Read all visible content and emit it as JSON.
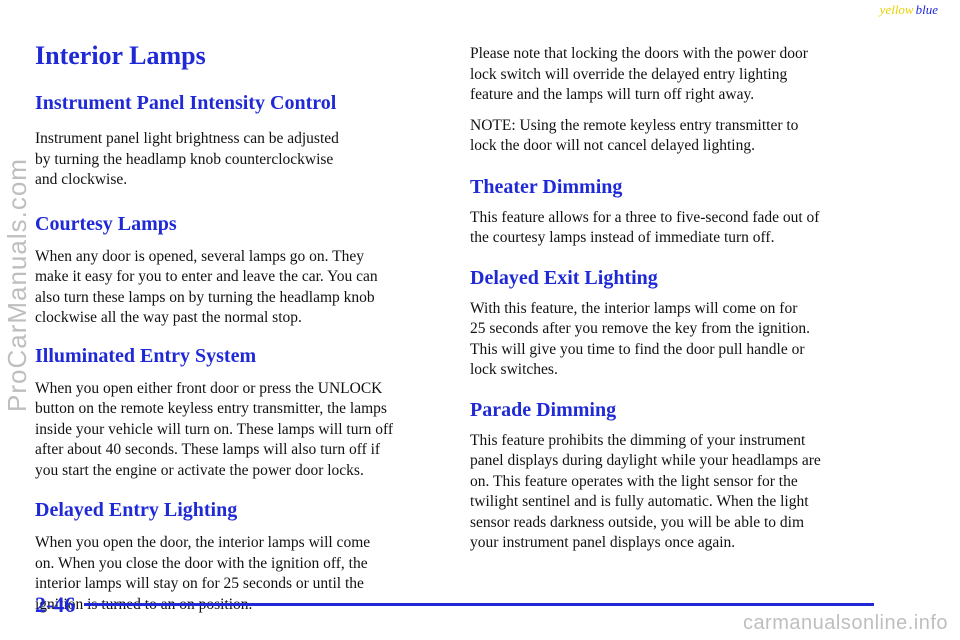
{
  "corner_tag": {
    "yellow": "yellow",
    "blue": "blue"
  },
  "left": {
    "title": "Interior Lamps",
    "sections": [
      {
        "heading": "Instrument Panel Intensity Control",
        "text": "Instrument panel light brightness can be adjusted\nby turning the headlamp knob counterclockwise\nand clockwise."
      },
      {
        "heading": "Courtesy Lamps",
        "text": "When any door is opened, several lamps go on. They\nmake it easy for you to enter and leave the car. You can\nalso turn these lamps on by turning the headlamp knob\nclockwise all the way past the normal stop."
      },
      {
        "heading": "Illuminated Entry System",
        "text": "When you open either front door or press the UNLOCK\nbutton on the remote keyless entry transmitter, the lamps\ninside your vehicle will turn on. These lamps will turn off\nafter about 40 seconds. These lamps will also turn off if\nyou start the engine or activate the power door locks."
      },
      {
        "heading": "Delayed Entry Lighting",
        "text": "When you open the door, the interior lamps will come\non. When you close the door with the ignition off, the\ninterior lamps will stay on for 25 seconds or until the\nignition is turned to an on position."
      }
    ]
  },
  "right": {
    "intro1": "Please note that locking the doors with the power door\nlock switch will override the delayed entry lighting\nfeature and the lamps will turn off right away.",
    "intro2": "NOTE: Using the remote keyless entry transmitter to\nlock the door will not cancel delayed lighting.",
    "sections": [
      {
        "heading": "Theater Dimming",
        "text": "This feature allows for a three to five‑second fade out of\nthe courtesy lamps instead of immediate turn off."
      },
      {
        "heading": "Delayed Exit Lighting",
        "text": "With this feature, the interior lamps will come on for\n25 seconds after you remove the key from the ignition.\nThis will give you time to find the door pull handle or\nlock switches."
      },
      {
        "heading": "Parade Dimming",
        "text": "This feature prohibits the dimming of your instrument\npanel displays during daylight while your headlamps are\non. This feature operates with the light sensor for the\ntwilight sentinel and is fully automatic. When the light\nsensor reads darkness outside, you will be able to dim\nyour instrument panel displays once again."
      }
    ]
  },
  "footer": {
    "page_number": "2-46"
  },
  "watermarks": {
    "left": "ProCarManuals.com",
    "bottom": "carmanualsonline.info"
  }
}
